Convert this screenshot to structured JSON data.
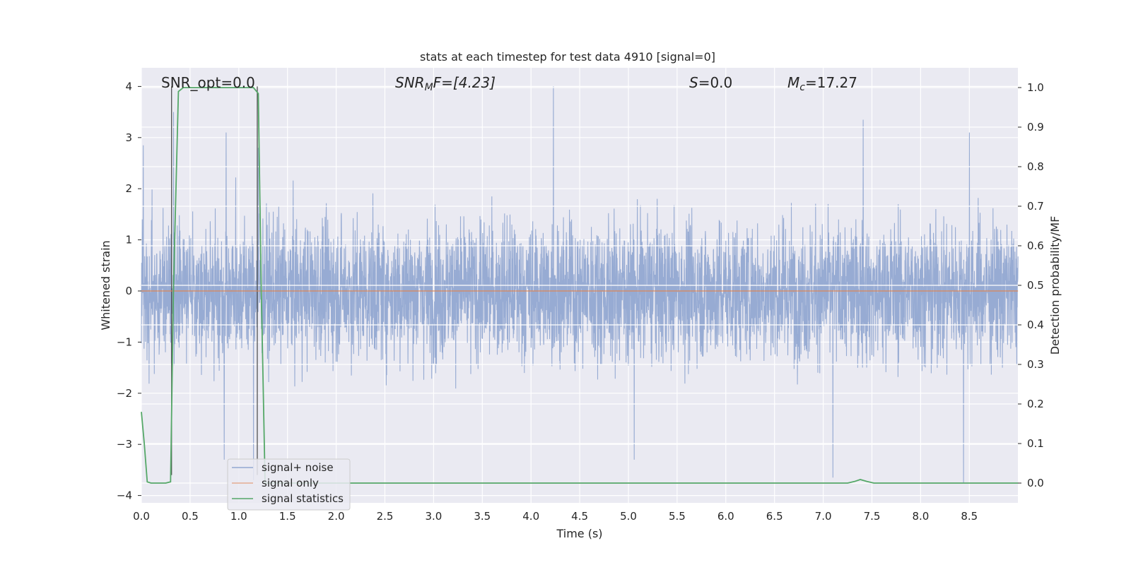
{
  "chart_data": {
    "type": "line",
    "title": "stats at each timestep for test data 4910 [signal=0]",
    "xlabel": "Time (s)",
    "ylabel": "Whitened strain",
    "ylabel_right": "Detection probability/MF",
    "xlim": [
      0.0,
      9.0
    ],
    "ylim": [
      -4.1,
      4.4
    ],
    "ylim_right": [
      -0.045,
      1.045
    ],
    "x_ticks": [
      0.0,
      0.5,
      1.0,
      1.5,
      2.0,
      2.5,
      3.0,
      3.5,
      4.0,
      4.5,
      5.0,
      5.5,
      6.0,
      6.5,
      7.0,
      7.5,
      8.0,
      8.5
    ],
    "x_tick_labels": [
      "0.0",
      "0.5",
      "1.0",
      "1.5",
      "2.0",
      "2.5",
      "3.0",
      "3.5",
      "4.0",
      "4.5",
      "5.0",
      "5.5",
      "6.0",
      "6.5",
      "7.0",
      "7.5",
      "8.0",
      "8.5"
    ],
    "y_ticks": [
      4,
      3,
      2,
      1,
      0,
      -1,
      -2,
      -3,
      -4
    ],
    "y_tick_labels": [
      "4",
      "3",
      "2",
      "1",
      "0",
      "−1",
      "−2",
      "−3",
      "−4"
    ],
    "y_right_ticks": [
      1.0,
      0.9,
      0.8,
      0.7,
      0.6,
      0.5,
      0.4,
      0.3,
      0.2,
      0.1,
      0.0
    ],
    "y_right_tick_labels": [
      "1.0",
      "0.9",
      "0.8",
      "0.7",
      "0.6",
      "0.5",
      "0.4",
      "0.3",
      "0.2",
      "0.1",
      "0.0"
    ],
    "grid": true,
    "legend_position": "lower-left",
    "annotations": {
      "snr_opt": "SNR_opt=0.0",
      "snr_mf_base": "SNR",
      "snr_mf_sub": "M",
      "snr_mf_rest": "F=[4.23]",
      "s_var": "S",
      "s_rest": "=0.0",
      "mc_var": "M",
      "mc_sub": "c",
      "mc_rest": "=17.27"
    },
    "series": [
      {
        "name": "signal+ noise",
        "color": "#92a8d1",
        "axis": "left",
        "description_stats": {
          "core_band": [
            -1.3,
            1.2
          ],
          "peaks_up": [
            [
              0.02,
              2.85
            ],
            [
              0.33,
              3.5
            ],
            [
              0.87,
              3.1
            ],
            [
              1.2,
              2.8
            ],
            [
              4.23,
              4.0
            ],
            [
              7.41,
              3.35
            ],
            [
              8.5,
              3.1
            ]
          ],
          "peaks_down": [
            [
              0.85,
              -3.3
            ],
            [
              1.15,
              -3.7
            ],
            [
              5.06,
              -3.3
            ],
            [
              7.1,
              -3.65
            ],
            [
              8.44,
              -3.75
            ]
          ]
        }
      },
      {
        "name": "signal only",
        "color": "#dd8452",
        "axis": "left",
        "x": [
          0.0,
          9.0
        ],
        "y": [
          0.0,
          0.0
        ]
      },
      {
        "name": "signal statistics",
        "color": "#55a868",
        "axis": "right",
        "x": [
          0.0,
          0.03,
          0.06,
          0.1,
          0.15,
          0.2,
          0.25,
          0.3,
          0.33,
          0.38,
          0.43,
          0.5,
          0.6,
          0.7,
          0.8,
          0.9,
          1.0,
          1.1,
          1.15,
          1.2,
          1.23,
          1.27,
          1.3,
          1.4,
          2.0,
          3.0,
          4.0,
          5.0,
          6.0,
          7.0,
          7.25,
          7.32,
          7.38,
          7.45,
          7.52,
          7.6,
          8.0,
          8.5,
          9.0
        ],
        "y": [
          0.18,
          0.1,
          0.003,
          0.0,
          0.0,
          0.0,
          0.0,
          0.003,
          0.5,
          0.99,
          1.0,
          1.0,
          1.0,
          1.0,
          1.0,
          1.0,
          1.0,
          1.0,
          1.0,
          0.985,
          0.5,
          0.0,
          0.0,
          0.0,
          0.0,
          0.0,
          0.0,
          0.0,
          0.0,
          0.0,
          0.0,
          0.004,
          0.009,
          0.004,
          0.0,
          0.0,
          0.0,
          0.0,
          0.0
        ]
      }
    ],
    "vlines": [
      0.31,
      1.19
    ]
  }
}
